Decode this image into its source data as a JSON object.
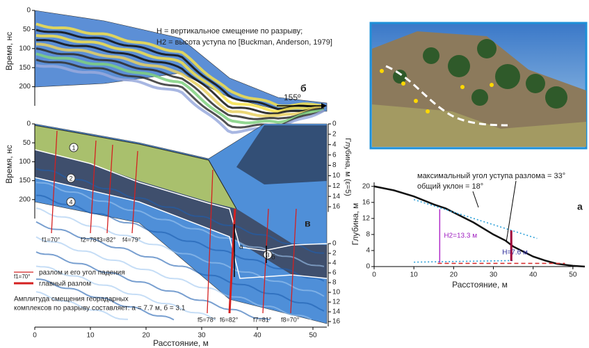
{
  "chart_data": [
    {
      "type": "radargram",
      "panel": "б",
      "ylabel": "Время, нс",
      "ylim": [
        0,
        250
      ],
      "yticks": [
        0,
        50,
        100,
        150,
        200
      ],
      "notes": [
        "H = вертикальное смещение по разрыву;",
        "H2 = высота уступа по [Buckman, Anderson, 1979]"
      ],
      "azimuth": "155º"
    },
    {
      "type": "radargram",
      "panel": "в",
      "ylabel": "Время, нс",
      "ylim": [
        0,
        250
      ],
      "yticks": [
        0,
        50,
        100,
        150,
        200
      ],
      "y2label": "Глубина, м (ε=5)",
      "y2lim": [
        0,
        17
      ],
      "y2ticks": [
        0,
        2,
        4,
        6,
        8,
        10,
        12,
        14,
        16
      ],
      "xlabel": "Расстояние, м",
      "xlim": [
        0,
        52.5
      ],
      "xticks": [
        0,
        10,
        20,
        30,
        40,
        50
      ],
      "units": [
        "1",
        "2",
        "3",
        "4"
      ],
      "faults": [
        {
          "label": "f1=70°",
          "x": 4
        },
        {
          "label": "f2=78°",
          "x": 11
        },
        {
          "label": "f3=82°",
          "x": 14
        },
        {
          "label": "f4=79°",
          "x": 18.5
        },
        {
          "label": "f5=78°",
          "x": 32
        },
        {
          "label": "f6=82°",
          "x": 36
        },
        {
          "label": "f7=81°",
          "x": 42
        },
        {
          "label": "f8=70°",
          "x": 47
        }
      ],
      "legend": {
        "fault_sample": "f1=70°",
        "fault": "разлом и его угол падения",
        "main_fault": "главный разлом"
      },
      "note": [
        "Амплитуда смещения георадарных",
        "комплексов по разрыву составляет: а = 7.7 м, б = 3.1"
      ],
      "amplitude_labels": [
        "а",
        "б"
      ]
    },
    {
      "type": "line",
      "panel": "а",
      "xlabel": "Расстояние, м",
      "ylabel": "Глубина, м",
      "xlim": [
        0,
        53
      ],
      "xticks": [
        0,
        10,
        20,
        30,
        40,
        50
      ],
      "ylim": [
        0,
        21
      ],
      "yticks": [
        0,
        4,
        8,
        12,
        16,
        20
      ],
      "annotations": [
        "максимальный угол уступа разлома = 33°",
        "общий уклон = 18°"
      ],
      "series": [
        {
          "color": "#111111",
          "style": "solid",
          "x": [
            0,
            5,
            10,
            15,
            18,
            20,
            25,
            30,
            33,
            35,
            38,
            40,
            43,
            46,
            50,
            53
          ],
          "values": [
            20,
            19,
            17.5,
            15.5,
            14.5,
            13.5,
            11,
            8,
            6.5,
            5,
            3.5,
            2.5,
            1.5,
            0.7,
            0.2,
            0
          ]
        },
        {
          "color": "#2a9fd8",
          "style": "dotted",
          "x": [
            10,
            41
          ],
          "values": [
            16.7,
            7
          ]
        },
        {
          "color": "#2a9fd8",
          "style": "dotted",
          "x": [
            10,
            35
          ],
          "values": [
            1.1,
            1.5
          ]
        },
        {
          "color": "#d83030",
          "style": "dashed",
          "x": [
            16,
            48
          ],
          "values": [
            0.8,
            0.8
          ]
        }
      ],
      "arrows": [
        {
          "label": "H2=13.3 м",
          "x": 16.5,
          "y": [
            1,
            14.3
          ],
          "color": "#b02ac8"
        },
        {
          "label": "H=7.6 м",
          "x": 34.5,
          "y": [
            1.4,
            9
          ],
          "color": "#a0003a"
        }
      ]
    }
  ]
}
